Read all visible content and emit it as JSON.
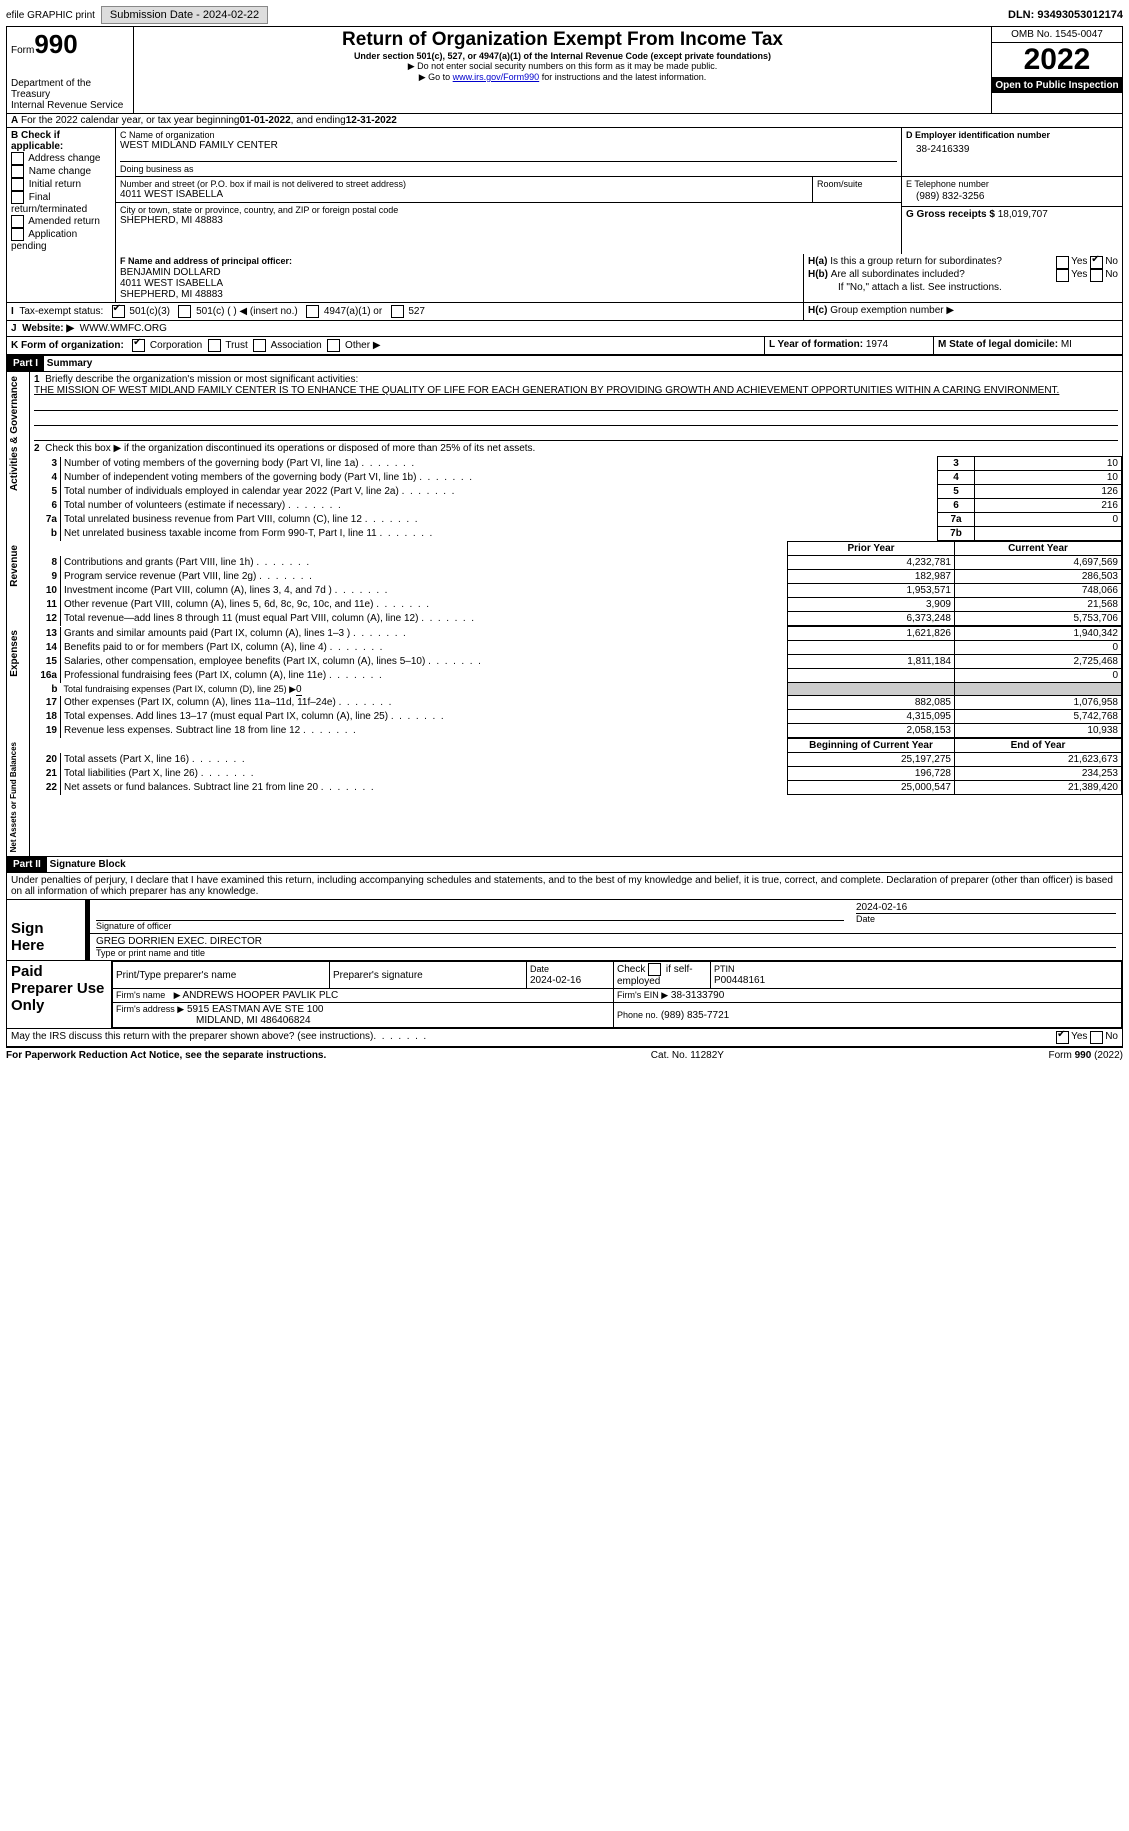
{
  "header_bar": {
    "efile": "efile GRAPHIC print",
    "sub_lbl": "Submission Date - ",
    "sub_date": "2024-02-22",
    "dln_lbl": "DLN: ",
    "dln": "93493053012174"
  },
  "top": {
    "form_pre": "Form",
    "form_no": "990",
    "title": "Return of Organization Exempt From Income Tax",
    "sub1": "Under section 501(c), 527, or 4947(a)(1) of the Internal Revenue Code (except private foundations)",
    "sub2": "▶ Do not enter social security numbers on this form as it may be made public.",
    "sub3_pre": "▶ Go to ",
    "sub3_link": "www.irs.gov/Form990",
    "sub3_post": " for instructions and the latest information.",
    "dept": "Department of the Treasury\nInternal Revenue Service",
    "omb": "OMB No. 1545-0047",
    "year": "2022",
    "open": "Open to Public Inspection"
  },
  "A": {
    "text": "For the 2022 calendar year, or tax year beginning ",
    "beg": "01-01-2022",
    "mid": " , and ending ",
    "end": "12-31-2022"
  },
  "B": {
    "lbl": "B Check if applicable:",
    "items": [
      "Address change",
      "Name change",
      "Initial return",
      "Final return/terminated",
      "Amended return",
      "Application pending"
    ]
  },
  "C": {
    "name_lbl": "C Name of organization",
    "name": "WEST MIDLAND FAMILY CENTER",
    "dba_lbl": "Doing business as",
    "dba": "",
    "addr_lbl": "Number and street (or P.O. box if mail is not delivered to street address)",
    "room_lbl": "Room/suite",
    "addr": "4011 WEST ISABELLA",
    "city_lbl": "City or town, state or province, country, and ZIP or foreign postal code",
    "city": "SHEPHERD, MI  48883"
  },
  "D": {
    "lbl": "D Employer identification number",
    "val": "38-2416339"
  },
  "E": {
    "lbl": "E Telephone number",
    "val": "(989) 832-3256"
  },
  "G": {
    "lbl": "G Gross receipts $",
    "val": "18,019,707"
  },
  "F": {
    "lbl": "F Name and address of principal officer:",
    "l1": "BENJAMIN DOLLARD",
    "l2": "4011 WEST ISABELLA",
    "l3": "SHEPHERD, MI  48883"
  },
  "H": {
    "a": "Is this a group return for subordinates?",
    "b": "Are all subordinates included?",
    "note": "If \"No,\" attach a list. See instructions.",
    "c": "Group exemption number ▶",
    "yes": "Yes",
    "no": "No"
  },
  "I": {
    "lbl": "Tax-exempt status:",
    "o1": "501(c)(3)",
    "o2": "501(c) (  ) ◀ (insert no.)",
    "o3": "4947(a)(1) or",
    "o4": "527"
  },
  "J": {
    "lbl": "Website: ▶",
    "val": "WWW.WMFC.ORG"
  },
  "K": {
    "lbl": "K Form of organization:",
    "o1": "Corporation",
    "o2": "Trust",
    "o3": "Association",
    "o4": "Other ▶"
  },
  "L": {
    "lbl": "L Year of formation:",
    "val": "1974"
  },
  "M": {
    "lbl": "M State of legal domicile:",
    "val": "MI"
  },
  "part1": {
    "hdr": "Part I",
    "title": "Summary"
  },
  "s1": {
    "q1": "Briefly describe the organization's mission or most significant activities:",
    "mission": "THE MISSION OF WEST MIDLAND FAMILY CENTER IS TO ENHANCE THE QUALITY OF LIFE FOR EACH GENERATION BY PROVIDING GROWTH AND ACHIEVEMENT OPPORTUNITIES WITHIN A CARING ENVIRONMENT.",
    "q2": "Check this box ▶         if the organization discontinued its operations or disposed of more than 25% of its net assets.",
    "r": [
      {
        "n": "3",
        "t": "Number of voting members of the governing body (Part VI, line 1a)",
        "b": "3",
        "v": "10"
      },
      {
        "n": "4",
        "t": "Number of independent voting members of the governing body (Part VI, line 1b)",
        "b": "4",
        "v": "10"
      },
      {
        "n": "5",
        "t": "Total number of individuals employed in calendar year 2022 (Part V, line 2a)",
        "b": "5",
        "v": "126"
      },
      {
        "n": "6",
        "t": "Total number of volunteers (estimate if necessary)",
        "b": "6",
        "v": "216"
      },
      {
        "n": "7a",
        "t": "Total unrelated business revenue from Part VIII, column (C), line 12",
        "b": "7a",
        "v": "0"
      },
      {
        "n": "b",
        "t": "Net unrelated business taxable income from Form 990-T, Part I, line 11",
        "b": "7b",
        "v": ""
      }
    ],
    "side": "Activities & Governance"
  },
  "rev": {
    "side": "Revenue",
    "hdr_prior": "Prior Year",
    "hdr_cur": "Current Year",
    "rows": [
      {
        "n": "8",
        "t": "Contributions and grants (Part VIII, line 1h)",
        "p": "4,232,781",
        "c": "4,697,569"
      },
      {
        "n": "9",
        "t": "Program service revenue (Part VIII, line 2g)",
        "p": "182,987",
        "c": "286,503"
      },
      {
        "n": "10",
        "t": "Investment income (Part VIII, column (A), lines 3, 4, and 7d )",
        "p": "1,953,571",
        "c": "748,066"
      },
      {
        "n": "11",
        "t": "Other revenue (Part VIII, column (A), lines 5, 6d, 8c, 9c, 10c, and 11e)",
        "p": "3,909",
        "c": "21,568"
      },
      {
        "n": "12",
        "t": "Total revenue—add lines 8 through 11 (must equal Part VIII, column (A), line 12)",
        "p": "6,373,248",
        "c": "5,753,706"
      }
    ]
  },
  "exp": {
    "side": "Expenses",
    "rows": [
      {
        "n": "13",
        "t": "Grants and similar amounts paid (Part IX, column (A), lines 1–3 )",
        "p": "1,621,826",
        "c": "1,940,342"
      },
      {
        "n": "14",
        "t": "Benefits paid to or for members (Part IX, column (A), line 4)",
        "p": "",
        "c": "0"
      },
      {
        "n": "15",
        "t": "Salaries, other compensation, employee benefits (Part IX, column (A), lines 5–10)",
        "p": "1,811,184",
        "c": "2,725,468"
      },
      {
        "n": "16a",
        "t": "Professional fundraising fees (Part IX, column (A), line 11e)",
        "p": "",
        "c": "0"
      },
      {
        "n": "b",
        "t": "Total fundraising expenses (Part IX, column (D), line 25) ▶",
        "p": "shade",
        "c": "shade",
        "val": "0"
      },
      {
        "n": "17",
        "t": "Other expenses (Part IX, column (A), lines 11a–11d, 11f–24e)",
        "p": "882,085",
        "c": "1,076,958"
      },
      {
        "n": "18",
        "t": "Total expenses. Add lines 13–17 (must equal Part IX, column (A), line 25)",
        "p": "4,315,095",
        "c": "5,742,768"
      },
      {
        "n": "19",
        "t": "Revenue less expenses. Subtract line 18 from line 12",
        "p": "2,058,153",
        "c": "10,938"
      }
    ]
  },
  "net": {
    "side": "Net Assets or Fund Balances",
    "hdr_prior": "Beginning of Current Year",
    "hdr_cur": "End of Year",
    "rows": [
      {
        "n": "20",
        "t": "Total assets (Part X, line 16)",
        "p": "25,197,275",
        "c": "21,623,673"
      },
      {
        "n": "21",
        "t": "Total liabilities (Part X, line 26)",
        "p": "196,728",
        "c": "234,253"
      },
      {
        "n": "22",
        "t": "Net assets or fund balances. Subtract line 21 from line 20",
        "p": "25,000,547",
        "c": "21,389,420"
      }
    ]
  },
  "part2": {
    "hdr": "Part II",
    "title": "Signature Block",
    "decl": "Under penalties of perjury, I declare that I have examined this return, including accompanying schedules and statements, and to the best of my knowledge and belief, it is true, correct, and complete. Declaration of preparer (other than officer) is based on all information of which preparer has any knowledge."
  },
  "sign": {
    "side": "Sign Here",
    "sig_lbl": "Signature of officer",
    "date_lbl": "Date",
    "date": "2024-02-16",
    "name": "GREG DORRIEN  EXEC. DIRECTOR",
    "name_lbl": "Type or print name and title"
  },
  "paid": {
    "side": "Paid Preparer Use Only",
    "h1": "Print/Type preparer's name",
    "h2": "Preparer's signature",
    "h3": "Date",
    "h3v": "2024-02-16",
    "h4": "Check         if self-employed",
    "h5": "PTIN",
    "h5v": "P00448161",
    "firm_lbl": "Firm's name",
    "firm": "ANDREWS HOOPER PAVLIK PLC",
    "ein_lbl": "Firm's EIN ▶",
    "ein": "38-3133790",
    "addr_lbl": "Firm's address ▶",
    "addr1": "5915 EASTMAN AVE STE 100",
    "addr2": "MIDLAND, MI  486406824",
    "ph_lbl": "Phone no.",
    "ph": "(989) 835-7721"
  },
  "foot": {
    "q": "May the IRS discuss this return with the preparer shown above? (see instructions)",
    "left": "For Paperwork Reduction Act Notice, see the separate instructions.",
    "mid": "Cat. No. 11282Y",
    "right": "Form 990 (2022)"
  }
}
